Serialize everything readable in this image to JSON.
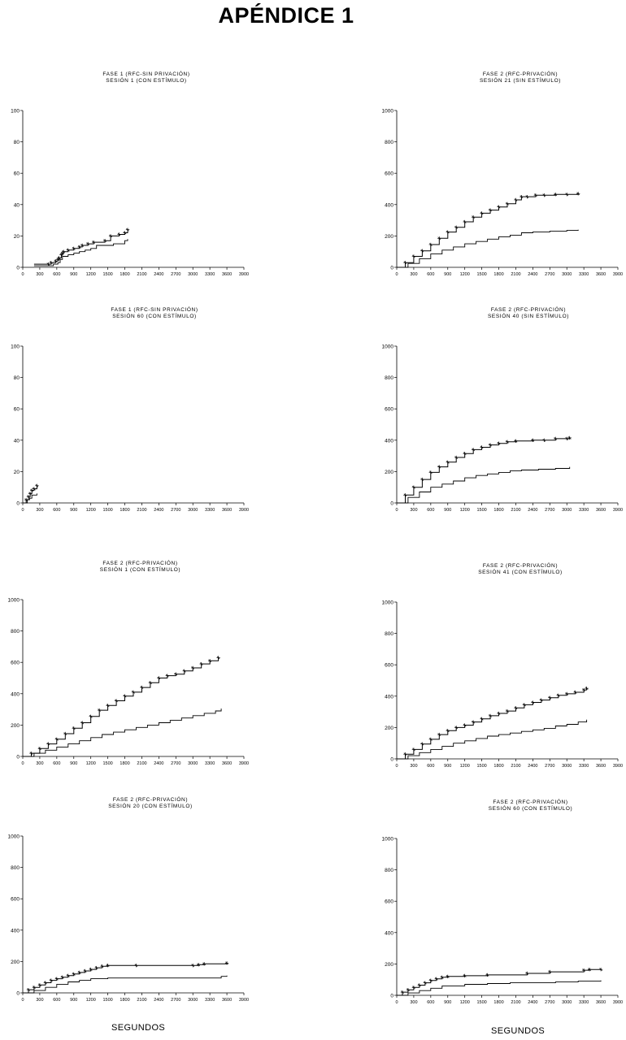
{
  "page": {
    "title": "APÉNDICE 1"
  },
  "chart_data": [
    {
      "type": "line",
      "title": "FASE 1 (RFC-SIN PRIVACIÓN)",
      "subtitle": "SESIÓN 1 (CON ESTÍMULO)",
      "xlabel": "",
      "ylabel": "",
      "xlim": [
        0,
        3900
      ],
      "ylim": [
        0,
        100
      ],
      "xticks": [
        "0",
        "300",
        "600",
        "900",
        "1200",
        "1500",
        "1800",
        "2100",
        "2400",
        "2700",
        "3000",
        "3300",
        "3600",
        "3900"
      ],
      "yticks": [
        "0",
        "20",
        "40",
        "60",
        "80",
        "100"
      ],
      "series": [
        {
          "marker": "star",
          "x": [
            200,
            450,
            500,
            580,
            620,
            640,
            680,
            700,
            720,
            800,
            900,
            1000,
            1050,
            1150,
            1250,
            1450,
            1550,
            1700,
            1800,
            1850
          ],
          "y": [
            2,
            2,
            3,
            4,
            5,
            6,
            8,
            9,
            10,
            11,
            12,
            13,
            14,
            15,
            16,
            17,
            20,
            21,
            22,
            24
          ]
        },
        {
          "marker": "none",
          "x": [
            200,
            500,
            540,
            620,
            660,
            700,
            800,
            900,
            1000,
            1100,
            1200,
            1300,
            1600,
            1800,
            1850
          ],
          "y": [
            1,
            1,
            2,
            3,
            5,
            7,
            8,
            9,
            10,
            11,
            12,
            14,
            15,
            17,
            18
          ]
        }
      ]
    },
    {
      "type": "line",
      "title": "FASE 2 (RFC-PRIVACIÓN)",
      "subtitle": "SESIÓN 21 (SIN ESTÍMULO)",
      "xlabel": "",
      "ylabel": "",
      "xlim": [
        0,
        3900
      ],
      "ylim": [
        0,
        1000
      ],
      "xticks": [
        "0",
        "300",
        "600",
        "900",
        "1200",
        "1500",
        "1800",
        "2100",
        "2400",
        "2700",
        "3000",
        "3300",
        "3600",
        "3900"
      ],
      "yticks": [
        "0",
        "200",
        "400",
        "600",
        "800",
        "1000"
      ],
      "series": [
        {
          "marker": "star",
          "x": [
            0,
            150,
            300,
            450,
            600,
            750,
            900,
            1050,
            1200,
            1350,
            1500,
            1650,
            1800,
            1950,
            2100,
            2200,
            2300,
            2450,
            2600,
            2800,
            3000,
            3200
          ],
          "y": [
            0,
            30,
            70,
            105,
            145,
            185,
            225,
            255,
            290,
            320,
            345,
            365,
            385,
            405,
            430,
            450,
            450,
            460,
            460,
            465,
            465,
            470
          ]
        },
        {
          "marker": "none",
          "x": [
            0,
            200,
            400,
            600,
            800,
            1000,
            1200,
            1400,
            1600,
            1800,
            2000,
            2200,
            2400,
            2700,
            3000,
            3200
          ],
          "y": [
            0,
            25,
            55,
            85,
            110,
            130,
            150,
            165,
            180,
            195,
            205,
            220,
            225,
            230,
            235,
            240
          ]
        }
      ]
    },
    {
      "type": "line",
      "title": "FASE 1 (RFC-SIN PRIVACIÓN)",
      "subtitle": "SESIÓN 60 (CON ESTÍMULO)",
      "xlabel": "",
      "ylabel": "",
      "xlim": [
        0,
        3900
      ],
      "ylim": [
        0,
        100
      ],
      "xticks": [
        "0",
        "300",
        "600",
        "900",
        "1200",
        "1500",
        "1800",
        "2100",
        "2400",
        "2700",
        "3000",
        "3300",
        "3600",
        "3900"
      ],
      "yticks": [
        "0",
        "20",
        "40",
        "60",
        "80",
        "100"
      ],
      "series": [
        {
          "marker": "star",
          "x": [
            0,
            60,
            100,
            130,
            160,
            200,
            250
          ],
          "y": [
            0,
            2,
            4,
            6,
            8,
            9,
            11
          ]
        },
        {
          "marker": "none",
          "x": [
            0,
            80,
            120,
            160,
            250
          ],
          "y": [
            0,
            2,
            3,
            5,
            6
          ]
        }
      ]
    },
    {
      "type": "line",
      "title": "FASE 2 (RFC-PRIVACIÓN)",
      "subtitle": "SESIÓN 40 (SIN ESTÍMULO)",
      "xlabel": "",
      "ylabel": "",
      "xlim": [
        0,
        3900
      ],
      "ylim": [
        0,
        1000
      ],
      "xticks": [
        "0",
        "300",
        "600",
        "900",
        "1200",
        "1500",
        "1800",
        "2100",
        "2400",
        "2700",
        "3000",
        "3300",
        "3600",
        "3900"
      ],
      "yticks": [
        "0",
        "200",
        "400",
        "600",
        "800",
        "1000"
      ],
      "series": [
        {
          "marker": "star",
          "x": [
            0,
            150,
            300,
            450,
            600,
            750,
            900,
            1050,
            1200,
            1350,
            1500,
            1650,
            1800,
            1950,
            2100,
            2400,
            2600,
            2800,
            3000,
            3050
          ],
          "y": [
            0,
            50,
            100,
            150,
            195,
            230,
            260,
            290,
            315,
            340,
            355,
            370,
            380,
            390,
            395,
            400,
            400,
            410,
            410,
            415
          ]
        },
        {
          "marker": "none",
          "x": [
            0,
            200,
            400,
            600,
            800,
            1000,
            1200,
            1400,
            1600,
            1800,
            2000,
            2200,
            2500,
            2800,
            3050
          ],
          "y": [
            0,
            35,
            70,
            100,
            120,
            140,
            160,
            175,
            185,
            195,
            205,
            210,
            215,
            220,
            230
          ]
        }
      ]
    },
    {
      "type": "line",
      "title": "FASE 2 (RFC-PRIVACIÓN)",
      "subtitle": "SESIÓN 1 (CON ESTÍMULO)",
      "xlabel": "",
      "ylabel": "",
      "xlim": [
        0,
        3900
      ],
      "ylim": [
        0,
        1000
      ],
      "xticks": [
        "0",
        "300",
        "600",
        "900",
        "1200",
        "1500",
        "1800",
        "2100",
        "2400",
        "2700",
        "3000",
        "3300",
        "3600",
        "3900"
      ],
      "yticks": [
        "0",
        "200",
        "400",
        "600",
        "800",
        "1000"
      ],
      "series": [
        {
          "marker": "star",
          "x": [
            0,
            150,
            300,
            450,
            600,
            750,
            900,
            1050,
            1200,
            1350,
            1500,
            1650,
            1800,
            1950,
            2100,
            2250,
            2400,
            2550,
            2700,
            2850,
            3000,
            3150,
            3300,
            3450
          ],
          "y": [
            0,
            20,
            50,
            80,
            110,
            145,
            180,
            215,
            255,
            295,
            325,
            355,
            385,
            410,
            440,
            470,
            500,
            515,
            525,
            545,
            565,
            590,
            610,
            630
          ]
        },
        {
          "marker": "none",
          "x": [
            0,
            200,
            400,
            600,
            800,
            1000,
            1200,
            1400,
            1600,
            1800,
            2000,
            2200,
            2400,
            2600,
            2800,
            3000,
            3200,
            3400,
            3500
          ],
          "y": [
            0,
            20,
            40,
            60,
            80,
            100,
            120,
            140,
            155,
            170,
            185,
            200,
            215,
            230,
            245,
            260,
            275,
            290,
            305
          ]
        }
      ]
    },
    {
      "type": "line",
      "title": "FASE 2 (RFC-PRIVACIÓN)",
      "subtitle": "SESIÓN 41 (CON ESTÍMULO)",
      "xlabel": "",
      "ylabel": "",
      "xlim": [
        0,
        3900
      ],
      "ylim": [
        0,
        1000
      ],
      "xticks": [
        "0",
        "300",
        "600",
        "900",
        "1200",
        "1500",
        "1800",
        "2100",
        "2400",
        "2700",
        "3000",
        "3300",
        "3600",
        "3900"
      ],
      "yticks": [
        "0",
        "200",
        "400",
        "600",
        "800",
        "1000"
      ],
      "series": [
        {
          "marker": "star",
          "x": [
            0,
            150,
            300,
            450,
            600,
            750,
            900,
            1050,
            1200,
            1350,
            1500,
            1650,
            1800,
            1950,
            2100,
            2250,
            2400,
            2550,
            2700,
            2850,
            3000,
            3150,
            3300,
            3350
          ],
          "y": [
            0,
            30,
            60,
            95,
            125,
            155,
            180,
            200,
            215,
            235,
            255,
            275,
            290,
            305,
            325,
            345,
            360,
            375,
            390,
            405,
            415,
            425,
            440,
            450
          ]
        },
        {
          "marker": "none",
          "x": [
            0,
            200,
            400,
            600,
            800,
            1000,
            1200,
            1400,
            1600,
            1800,
            2000,
            2200,
            2400,
            2600,
            2800,
            3000,
            3200,
            3350
          ],
          "y": [
            0,
            20,
            40,
            60,
            80,
            100,
            115,
            130,
            145,
            155,
            165,
            175,
            185,
            195,
            210,
            220,
            235,
            250
          ]
        }
      ]
    },
    {
      "type": "line",
      "title": "FASE 2 (RFC-PRIVACIÓN)",
      "subtitle": "SESIÓN 20 (CON ESTÍMULO)",
      "xlabel": "SEGUNDOS",
      "ylabel": "",
      "xlim": [
        0,
        3900
      ],
      "ylim": [
        0,
        1000
      ],
      "xticks": [
        "0",
        "300",
        "600",
        "900",
        "1200",
        "1500",
        "1800",
        "2100",
        "2400",
        "2700",
        "3000",
        "3300",
        "3600",
        "3900"
      ],
      "yticks": [
        "0",
        "200",
        "400",
        "600",
        "800",
        "1000"
      ],
      "series": [
        {
          "marker": "star",
          "x": [
            0,
            100,
            200,
            300,
            400,
            500,
            600,
            700,
            800,
            900,
            1000,
            1100,
            1200,
            1300,
            1400,
            1500,
            2000,
            3000,
            3100,
            3200,
            3600
          ],
          "y": [
            0,
            20,
            35,
            50,
            65,
            80,
            90,
            100,
            110,
            120,
            130,
            140,
            150,
            160,
            170,
            175,
            175,
            175,
            180,
            185,
            190
          ]
        },
        {
          "marker": "none",
          "x": [
            0,
            200,
            400,
            600,
            800,
            1000,
            1200,
            1500,
            2000,
            2500,
            3000,
            3500,
            3600
          ],
          "y": [
            0,
            15,
            35,
            55,
            70,
            80,
            90,
            95,
            95,
            95,
            95,
            105,
            110
          ]
        }
      ]
    },
    {
      "type": "line",
      "title": "FASE 2 (RFC-PRIVACIÓN)",
      "subtitle": "SESIÓN 60 (CON ESTÍMULO)",
      "xlabel": "SEGUNDOS",
      "ylabel": "",
      "xlim": [
        0,
        3900
      ],
      "ylim": [
        0,
        1000
      ],
      "xticks": [
        "0",
        "300",
        "600",
        "900",
        "1200",
        "1500",
        "1800",
        "2100",
        "2400",
        "2700",
        "3000",
        "3300",
        "3600",
        "3900"
      ],
      "yticks": [
        "0",
        "200",
        "400",
        "600",
        "800",
        "1000"
      ],
      "series": [
        {
          "marker": "star",
          "x": [
            0,
            100,
            200,
            300,
            400,
            500,
            600,
            700,
            800,
            900,
            1200,
            1600,
            2300,
            2700,
            3300,
            3400,
            3600
          ],
          "y": [
            0,
            20,
            35,
            50,
            65,
            80,
            95,
            105,
            115,
            120,
            125,
            130,
            140,
            150,
            160,
            165,
            165
          ]
        },
        {
          "marker": "none",
          "x": [
            0,
            200,
            400,
            600,
            800,
            1200,
            1600,
            2000,
            2400,
            2800,
            3200,
            3600
          ],
          "y": [
            0,
            15,
            30,
            45,
            60,
            70,
            75,
            80,
            80,
            85,
            90,
            95
          ]
        }
      ]
    }
  ]
}
